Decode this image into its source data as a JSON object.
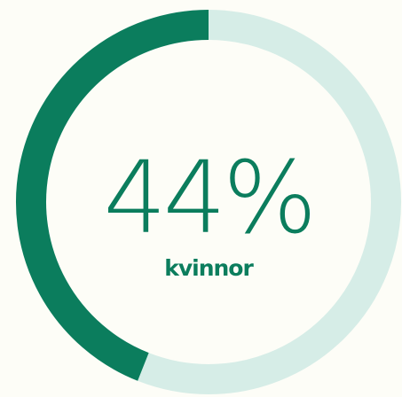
{
  "chart_data": {
    "type": "donut",
    "categories": [
      "kvinnor"
    ],
    "values": [
      44
    ],
    "value_labels": [
      "44%"
    ],
    "ylim": [
      0,
      100
    ],
    "color": "#0b7d5d",
    "track_color": "#d6ede7"
  }
}
